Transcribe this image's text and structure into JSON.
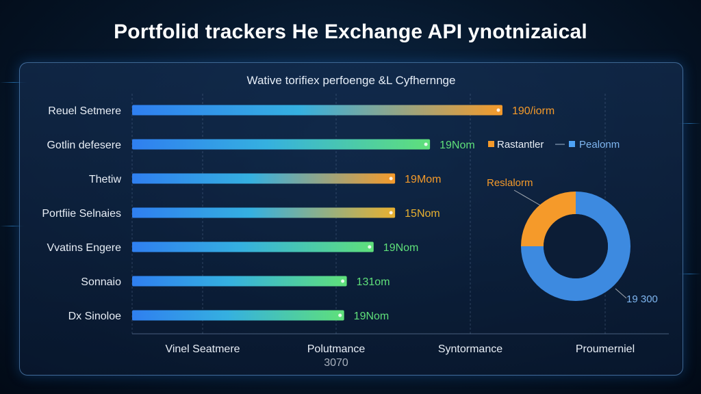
{
  "title": "Portfolid trackers He Exchange API ynotnizaical",
  "colors": {
    "orange": "#f59a2a",
    "green": "#5fe07a",
    "blue": "#2f7ff0",
    "donut_blue": "#3d8ae0",
    "donut_dark": "#2d5fa0"
  },
  "chart_data": [
    {
      "type": "bar",
      "orientation": "horizontal",
      "title": "Wative torifiex perfoenge &L Cyfhernnge",
      "categories": [
        "Reuel Setmere",
        "Gotlin defesere",
        "Thetiw",
        "Portfiie Selnaies",
        "Vvatins Engere",
        "Sonnaio",
        "Dx Sinoloe"
      ],
      "values": [
        690,
        555,
        490,
        490,
        450,
        400,
        395
      ],
      "value_labels": [
        "190/iorm",
        "19Nom",
        "19Mom",
        "15Nom",
        "19Nom",
        "131om",
        "19Nom"
      ],
      "bar_end_colors": [
        "#f59a2a",
        "#5fe07a",
        "#f59a2a",
        "#e8b030",
        "#5fe07a",
        "#5fe07a",
        "#5fe07a"
      ],
      "x_ticks": [
        "Vinel Seatmere",
        "Polutmance",
        "Syntormance",
        "Proumerniel"
      ],
      "x_tick_sub": [
        "",
        "3070",
        "",
        ""
      ],
      "xlim": [
        0,
        1000
      ],
      "grid": true
    },
    {
      "type": "pie",
      "donut": true,
      "legend": [
        "Rastantler",
        "Pealonm"
      ],
      "legend_placement": "top",
      "labels": [
        "Reslalorm",
        "19 300"
      ],
      "values": [
        25,
        75
      ]
    }
  ]
}
